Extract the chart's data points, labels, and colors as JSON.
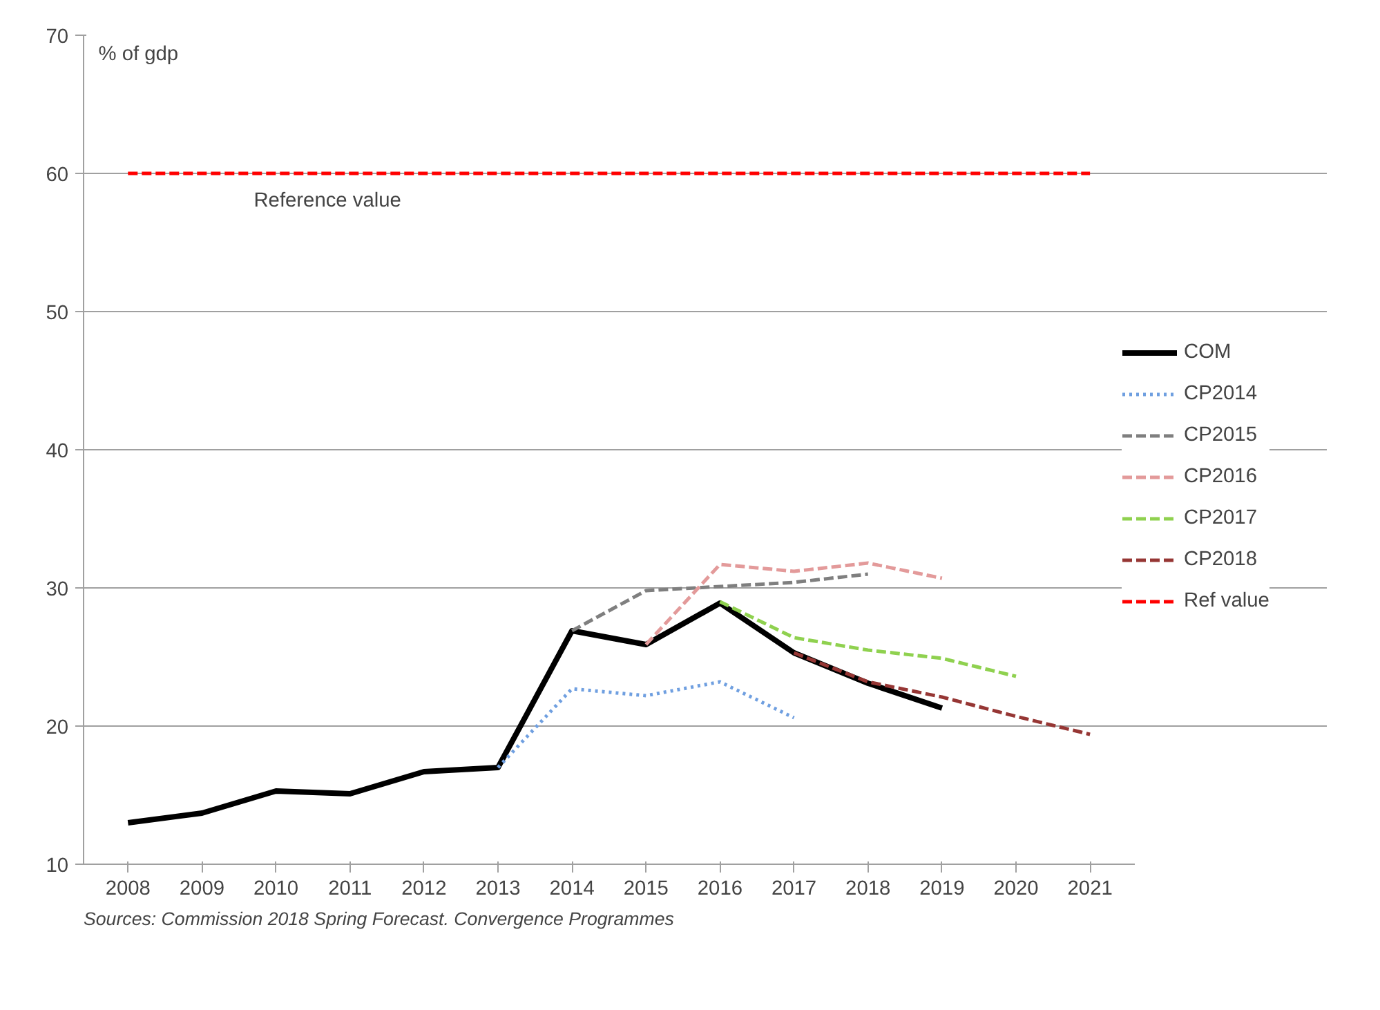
{
  "chart_data": {
    "type": "line",
    "ylabel": "% of gdp",
    "categories": [
      "2008",
      "2009",
      "2010",
      "2011",
      "2012",
      "2013",
      "2014",
      "2015",
      "2016",
      "2017",
      "2018",
      "2019",
      "2020",
      "2021"
    ],
    "ylim": [
      10,
      70
    ],
    "yticks": [
      10,
      20,
      30,
      40,
      50,
      60,
      70
    ],
    "grid": "y",
    "legend": "right",
    "marker": "none",
    "series": [
      {
        "name": "COM",
        "color": "#000000",
        "line_style": "solid",
        "values": [
          13.0,
          13.7,
          15.3,
          15.1,
          16.7,
          17.0,
          26.9,
          25.9,
          28.9,
          25.3,
          23.1,
          21.3,
          null,
          null
        ]
      },
      {
        "name": "CP2014",
        "color": "#6f9fe0",
        "line_style": "dotted",
        "values": [
          null,
          null,
          null,
          null,
          null,
          17.0,
          22.7,
          22.2,
          23.2,
          20.6,
          null,
          null,
          null,
          null
        ]
      },
      {
        "name": "CP2015",
        "color": "#7f7f7f",
        "line_style": "dashed",
        "values": [
          null,
          null,
          null,
          null,
          null,
          null,
          26.9,
          29.8,
          30.1,
          30.4,
          31.0,
          null,
          null,
          null
        ]
      },
      {
        "name": "CP2016",
        "color": "#e39a9a",
        "line_style": "dashed",
        "values": [
          null,
          null,
          null,
          null,
          null,
          null,
          null,
          25.9,
          31.7,
          31.2,
          31.8,
          30.7,
          null,
          null
        ]
      },
      {
        "name": "CP2017",
        "color": "#8fd14f",
        "line_style": "dashed",
        "values": [
          null,
          null,
          null,
          null,
          null,
          null,
          null,
          null,
          29.0,
          26.4,
          25.5,
          24.9,
          23.6,
          null
        ]
      },
      {
        "name": "CP2018",
        "color": "#963634",
        "line_style": "dashed",
        "values": [
          null,
          null,
          null,
          null,
          null,
          null,
          null,
          null,
          null,
          25.3,
          23.2,
          22.1,
          20.7,
          19.4
        ]
      },
      {
        "name": "Ref value",
        "color": "#ff0000",
        "line_style": "dashed",
        "values": [
          60,
          60,
          60,
          60,
          60,
          60,
          60,
          60,
          60,
          60,
          60,
          60,
          60,
          60
        ]
      }
    ],
    "annotations": [
      "Reference value",
      "Sources: Commission 2018 Spring Forecast. Convergence Programmes"
    ]
  }
}
